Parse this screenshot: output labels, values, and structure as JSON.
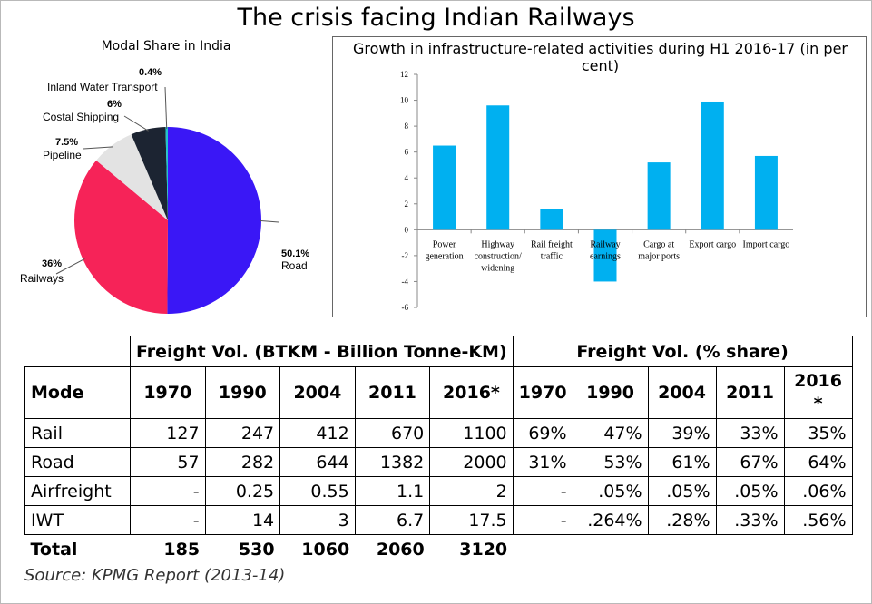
{
  "title": "The crisis facing Indian Railways",
  "chart_data": [
    {
      "type": "pie",
      "title": "Modal Share in India",
      "slices": [
        {
          "name": "Road",
          "pct_label": "50.1%",
          "value": 50.1,
          "color": "#3a17f6"
        },
        {
          "name": "Railways",
          "pct_label": "36%",
          "value": 36,
          "color": "#f62358"
        },
        {
          "name": "Pipeline",
          "pct_label": "7.5%",
          "value": 7.5,
          "color": "#e3e3e3"
        },
        {
          "name": "Costal Shipping",
          "pct_label": "6%",
          "value": 6,
          "color": "#1c2432"
        },
        {
          "name": "Inland Water Transport",
          "pct_label": "0.4%",
          "value": 0.4,
          "color": "#22c3cb"
        }
      ]
    },
    {
      "type": "bar",
      "title": "Growth in infrastructure-related activities during H1 2016-17 (in per cent)",
      "categories": [
        [
          "Power",
          "generation"
        ],
        [
          "Highway",
          "construction/",
          "widening"
        ],
        [
          "Rail freight",
          "traffic"
        ],
        [
          "Railway",
          "earnings"
        ],
        [
          "Cargo at",
          "major ports"
        ],
        [
          "Export cargo"
        ],
        [
          "Import cargo"
        ]
      ],
      "values": [
        6.5,
        9.6,
        1.6,
        -4,
        5.2,
        9.9,
        5.7
      ],
      "ylim": [
        -6,
        12
      ],
      "yticks": [
        -6,
        -4,
        -2,
        0,
        2,
        4,
        6,
        8,
        10,
        12
      ],
      "bar_color": "#00b0f0",
      "grid": false
    }
  ],
  "table": {
    "group_headers": [
      "Freight Vol. (BTKM - Billion Tonne-KM)",
      "Freight Vol. (% share)"
    ],
    "columns": [
      "Mode",
      "1970",
      "1990",
      "2004",
      "2011",
      "2016*",
      "1970",
      "1990",
      "2004",
      "2011",
      "2016\n*"
    ],
    "rows": [
      [
        "Rail",
        "127",
        "247",
        "412",
        "670",
        "1100",
        "69%",
        "47%",
        "39%",
        "33%",
        "35%"
      ],
      [
        "Road",
        "57",
        "282",
        "644",
        "1382",
        "2000",
        "31%",
        "53%",
        "61%",
        "67%",
        "64%"
      ],
      [
        "Airfreight",
        "-",
        "0.25",
        "0.55",
        "1.1",
        "2",
        "-",
        ".05%",
        ".05%",
        ".05%",
        ".06%"
      ],
      [
        "IWT",
        "-",
        "14",
        "3",
        "6.7",
        "17.5",
        "-",
        ".264%",
        ".28%",
        ".33%",
        ".56%"
      ]
    ],
    "total": [
      "Total",
      "185",
      "530",
      "1060",
      "2060",
      "3120"
    ]
  },
  "source": "Source: KPMG Report (2013-14)"
}
